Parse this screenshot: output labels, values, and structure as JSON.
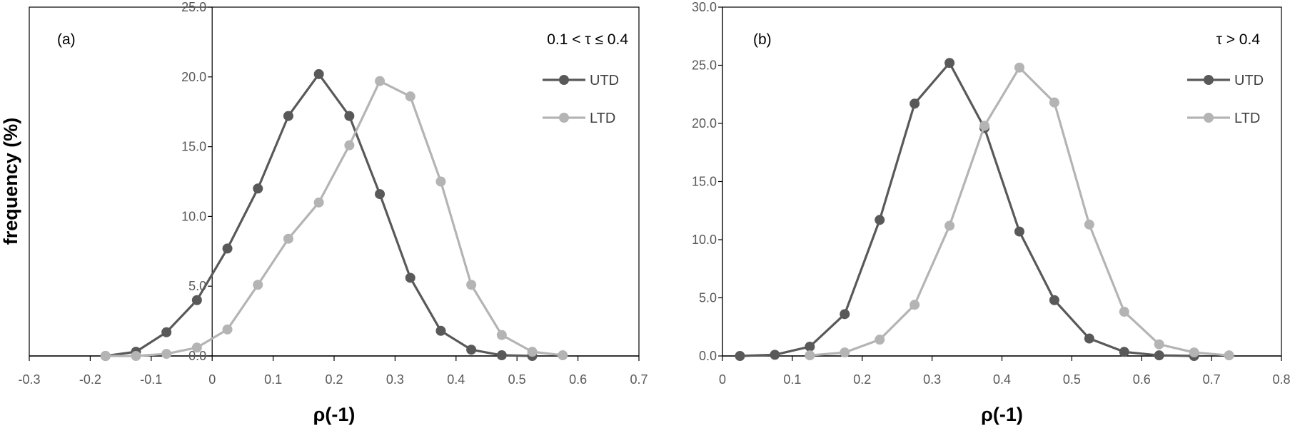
{
  "chart_data": [
    {
      "type": "line",
      "panel_label": "(a)",
      "annotation": "0.1 < τ ≤ 0.4",
      "xlabel": "ρ(-1)",
      "ylabel": "frequency (%)",
      "xlim": [
        -0.3,
        0.7
      ],
      "ylim": [
        0,
        25
      ],
      "xticks": [
        -0.3,
        -0.2,
        -0.1,
        0,
        0.1,
        0.2,
        0.3,
        0.4,
        0.5,
        0.6,
        0.7
      ],
      "xtick_labels": [
        "-0.3",
        "-0.2",
        "-0.1",
        "0",
        "0.1",
        "0.2",
        "0.3",
        "0.4",
        "0.5",
        "0.6",
        "0.7"
      ],
      "yticks": [
        0,
        5,
        10,
        15,
        20,
        25
      ],
      "ytick_labels": [
        "0.0",
        "5.0",
        "10.0",
        "15.0",
        "20.0",
        "25.0"
      ],
      "legend_position": "top-right",
      "series": [
        {
          "name": "UTD",
          "color": "#595959",
          "x": [
            -0.175,
            -0.125,
            -0.075,
            -0.025,
            0.025,
            0.075,
            0.125,
            0.175,
            0.225,
            0.275,
            0.325,
            0.375,
            0.425,
            0.475,
            0.525
          ],
          "y": [
            0.0,
            0.3,
            1.7,
            4.0,
            7.7,
            12.0,
            17.2,
            20.2,
            17.2,
            11.6,
            5.6,
            1.8,
            0.45,
            0.05,
            0.0
          ]
        },
        {
          "name": "LTD",
          "color": "#b4b4b4",
          "x": [
            -0.175,
            -0.125,
            -0.075,
            -0.025,
            0.025,
            0.075,
            0.125,
            0.175,
            0.225,
            0.275,
            0.325,
            0.375,
            0.425,
            0.475,
            0.525,
            0.575
          ],
          "y": [
            0.0,
            0.0,
            0.15,
            0.6,
            1.9,
            5.1,
            8.4,
            11.0,
            15.1,
            19.7,
            18.6,
            12.5,
            5.1,
            1.5,
            0.3,
            0.05
          ]
        }
      ]
    },
    {
      "type": "line",
      "panel_label": "(b)",
      "annotation": "τ > 0.4",
      "xlabel": "ρ(-1)",
      "ylabel": "",
      "xlim": [
        0,
        0.8
      ],
      "ylim": [
        0,
        30
      ],
      "xticks": [
        0,
        0.1,
        0.2,
        0.3,
        0.4,
        0.5,
        0.6,
        0.7,
        0.8
      ],
      "xtick_labels": [
        "0",
        "0.1",
        "0.2",
        "0.3",
        "0.4",
        "0.5",
        "0.6",
        "0.7",
        "0.8"
      ],
      "yticks": [
        0,
        5,
        10,
        15,
        20,
        25,
        30
      ],
      "ytick_labels": [
        "0.0",
        "5.0",
        "10.0",
        "15.0",
        "20.0",
        "25.0",
        "30.0"
      ],
      "legend_position": "top-right",
      "series": [
        {
          "name": "UTD",
          "color": "#595959",
          "x": [
            0.025,
            0.075,
            0.125,
            0.175,
            0.225,
            0.275,
            0.325,
            0.375,
            0.425,
            0.475,
            0.525,
            0.575,
            0.625,
            0.675
          ],
          "y": [
            0.0,
            0.1,
            0.8,
            3.6,
            11.7,
            21.7,
            25.2,
            19.6,
            10.7,
            4.8,
            1.5,
            0.35,
            0.05,
            0.0
          ]
        },
        {
          "name": "LTD",
          "color": "#b4b4b4",
          "x": [
            0.125,
            0.175,
            0.225,
            0.275,
            0.325,
            0.375,
            0.425,
            0.475,
            0.525,
            0.575,
            0.625,
            0.675,
            0.725
          ],
          "y": [
            0.05,
            0.3,
            1.4,
            4.4,
            11.2,
            19.8,
            24.8,
            21.8,
            11.3,
            3.8,
            1.0,
            0.3,
            0.05
          ]
        }
      ]
    }
  ]
}
